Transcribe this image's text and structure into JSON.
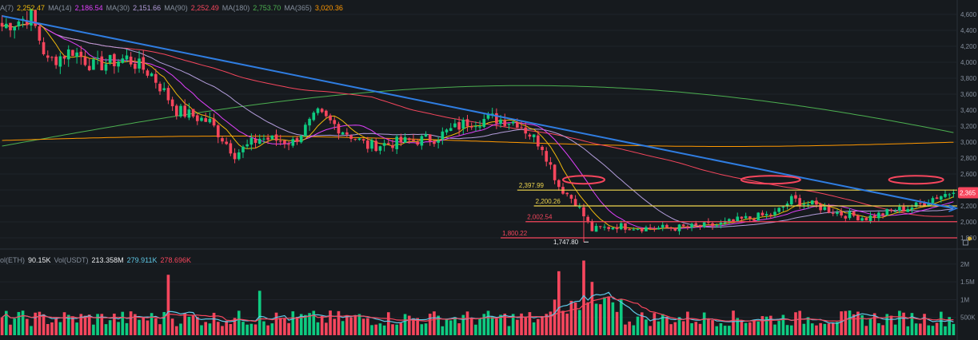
{
  "ma_legend": [
    {
      "label": "A(7)",
      "value": "2,252.47",
      "color": "#f0b90b"
    },
    {
      "label": "MA(14)",
      "value": "2,186.54",
      "color": "#e040fb"
    },
    {
      "label": "MA(30)",
      "value": "2,151.66",
      "color": "#b39ddb"
    },
    {
      "label": "MA(90)",
      "value": "2,252.49",
      "color": "#f6465d"
    },
    {
      "label": "MA(180)",
      "value": "2,753.70",
      "color": "#4caf50"
    },
    {
      "label": "MA(365)",
      "value": "3,020.36",
      "color": "#ff9800"
    }
  ],
  "vol_legend": [
    {
      "label": "ol(ETH)",
      "value": "90.15K",
      "color": "#eaecef"
    },
    {
      "label": "Vol(USDT)",
      "value": "213.358M",
      "color": "#eaecef"
    },
    {
      "label": "",
      "value": "279.911K",
      "color": "#5fc8e6"
    },
    {
      "label": "",
      "value": "278.696K",
      "color": "#f6465d"
    }
  ],
  "chart_data": [
    {
      "type": "candlestick",
      "title": "",
      "y_axis_ticks": [
        "4,600",
        "4,400",
        "4,200",
        "4,000",
        "3,800",
        "3,600",
        "3,400",
        "3,200",
        "3,000",
        "2,800",
        "2,600",
        "2,400",
        "2,200",
        "2,000",
        "1,800"
      ],
      "ylim": [
        1720,
        4700
      ],
      "current_price": "2,365",
      "current_price_value": 2365,
      "level_lines": [
        {
          "label": "2,397.99",
          "value": 2397.99,
          "color": "#f0d74e"
        },
        {
          "label": "2,200.26",
          "value": 2200.26,
          "color": "#f0d74e"
        },
        {
          "label": "2,002.54",
          "value": 2002.54,
          "color": "#f6465d"
        },
        {
          "label": "1,800.22",
          "value": 1800.22,
          "color": "#f6465d"
        }
      ],
      "low_marker": {
        "label": "1,747.80",
        "value": 1747.8
      },
      "ma_colors": {
        "ma7": "#f0b90b",
        "ma14": "#e040fb",
        "ma30": "#b39ddb",
        "ma90": "#f6465d",
        "ma180": "#4caf50",
        "ma365": "#ff9800"
      },
      "trendline": {
        "from": 4580,
        "to": 2170,
        "color": "#2f7de1"
      },
      "colors": {
        "up": "#0ecb81",
        "down": "#f6465d",
        "circle": "#f6465d"
      },
      "price_waypoints": [
        [
          0,
          4450
        ],
        [
          7,
          4580
        ],
        [
          11,
          4000
        ],
        [
          17,
          4150
        ],
        [
          22,
          3950
        ],
        [
          30,
          4050
        ],
        [
          36,
          3850
        ],
        [
          42,
          3400
        ],
        [
          50,
          3250
        ],
        [
          56,
          2850
        ],
        [
          62,
          3050
        ],
        [
          70,
          3000
        ],
        [
          76,
          3350
        ],
        [
          82,
          3150
        ],
        [
          88,
          2950
        ],
        [
          96,
          3000
        ],
        [
          104,
          3050
        ],
        [
          112,
          3250
        ],
        [
          118,
          3300
        ],
        [
          124,
          3250
        ],
        [
          130,
          2950
        ],
        [
          134,
          2450
        ],
        [
          138,
          2250
        ],
        [
          142,
          1900
        ],
        [
          148,
          1950
        ],
        [
          156,
          1920
        ],
        [
          164,
          1930
        ],
        [
          172,
          1960
        ],
        [
          180,
          2050
        ],
        [
          186,
          2100
        ],
        [
          190,
          2280
        ],
        [
          196,
          2200
        ],
        [
          202,
          2100
        ],
        [
          208,
          2050
        ],
        [
          214,
          2130
        ],
        [
          220,
          2200
        ],
        [
          224,
          2300
        ],
        [
          228,
          2365
        ]
      ]
    },
    {
      "type": "bar",
      "title": "",
      "y_axis_ticks": [
        "2M",
        "1.5M",
        "1M",
        "500K"
      ],
      "ylim": [
        0,
        2200000
      ],
      "volume_peaks": [
        [
          134,
          1800000
        ],
        [
          140,
          2100000
        ],
        [
          142,
          1500000
        ],
        [
          40,
          1700000
        ],
        [
          62,
          1250000
        ]
      ],
      "ma_colors": {
        "vol_ma1": "#5fc8e6",
        "vol_ma2": "#f6465d"
      }
    }
  ]
}
